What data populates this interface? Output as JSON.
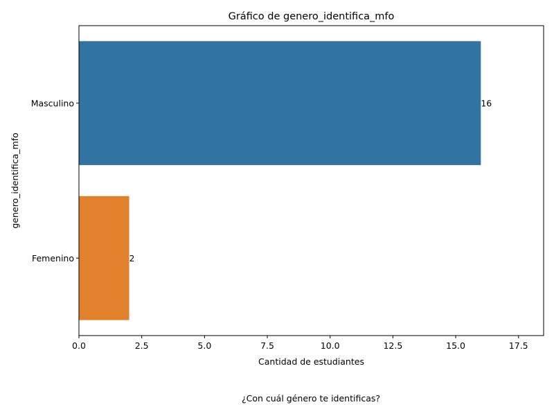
{
  "chart_data": {
    "type": "bar",
    "orientation": "horizontal",
    "title": "Gráfico de genero_identifica_mfo",
    "xlabel": "Cantidad de estudiantes",
    "ylabel": "genero_identifica_mfo",
    "categories": [
      "Masculino",
      "Femenino"
    ],
    "values": [
      16,
      2
    ],
    "data_labels": [
      "16",
      "2"
    ],
    "colors": [
      "#3274a1",
      "#e1812c"
    ],
    "xlim": [
      0,
      18.5
    ],
    "xticks": [
      0,
      2.5,
      5,
      7.5,
      10,
      12.5,
      15,
      17.5
    ],
    "xtick_labels": [
      "0.0",
      "2.5",
      "5.0",
      "7.5",
      "10.0",
      "12.5",
      "15.0",
      "17.5"
    ],
    "grid": false,
    "legend": "none"
  },
  "caption": "¿Con cuál género te identificas?"
}
